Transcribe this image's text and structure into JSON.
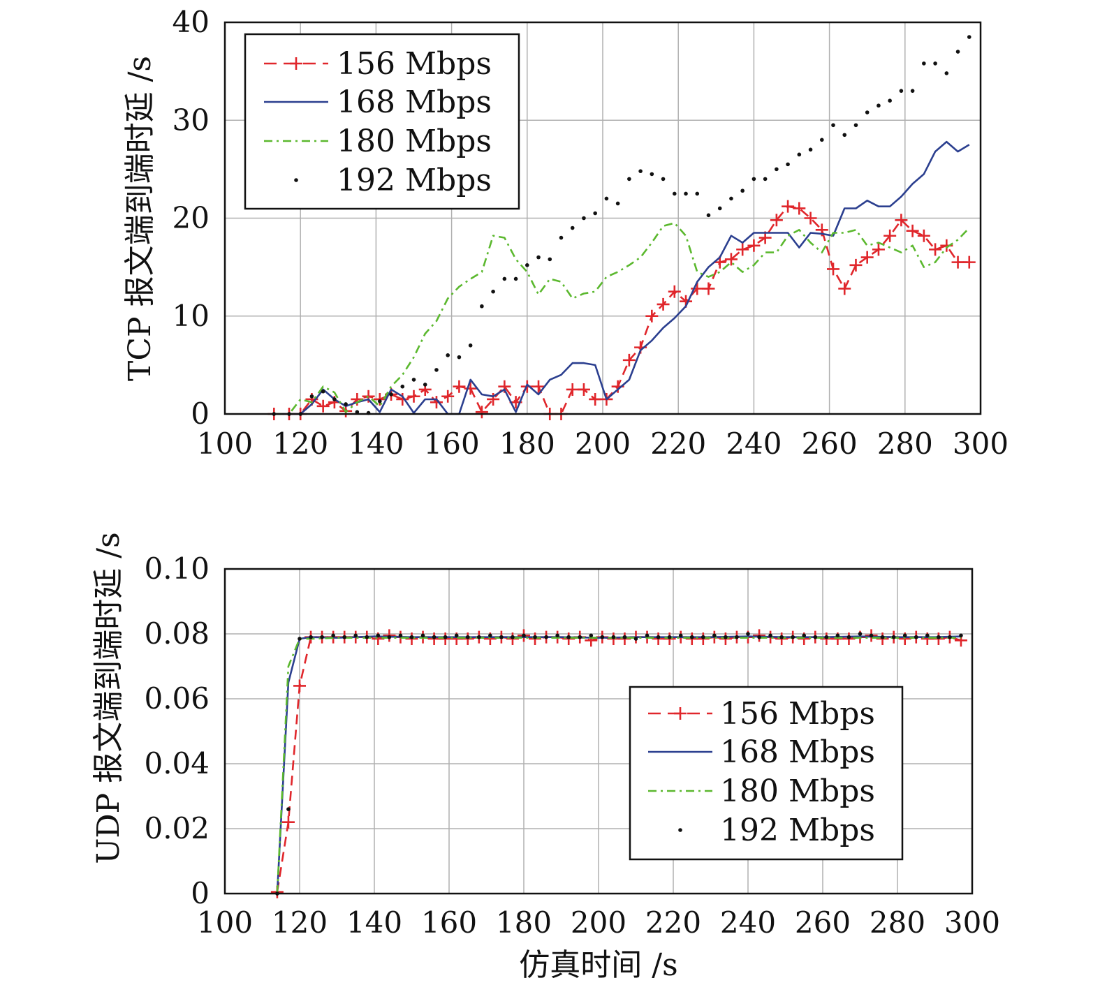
{
  "colors": {
    "s156": "#e0262b",
    "s168": "#2b3f8f",
    "s180": "#5bb82e",
    "s192": "#111111",
    "grid": "#b0b0b0"
  },
  "chart_data": [
    {
      "type": "line",
      "id": "tcp",
      "ylabel": "TCP 报文端到端时延 /s",
      "xlabel": "",
      "xlim": [
        100,
        300
      ],
      "ylim": [
        0,
        40
      ],
      "xticks": [
        "100",
        "120",
        "140",
        "160",
        "180",
        "200",
        "220",
        "240",
        "260",
        "280",
        "300"
      ],
      "yticks": [
        "0",
        "10",
        "20",
        "30",
        "40"
      ],
      "grid": true,
      "legend_position": "top-left",
      "series": [
        {
          "name": "156 Mbps",
          "style": "dash-plus",
          "color": "#e0262b",
          "x": [
            113,
            117,
            120,
            123,
            126,
            129,
            132,
            135,
            138,
            141,
            144,
            147,
            150,
            153,
            156,
            159,
            162,
            165,
            168,
            171,
            174,
            177,
            180,
            183,
            186,
            189,
            192,
            195,
            198,
            201,
            204,
            207,
            210,
            213,
            216,
            219,
            222,
            225,
            228,
            231,
            234,
            237,
            240,
            243,
            246,
            249,
            252,
            255,
            258,
            261,
            264,
            267,
            270,
            273,
            276,
            279,
            282,
            285,
            288,
            291,
            294,
            297
          ],
          "y": [
            0,
            0,
            0,
            1.5,
            0.8,
            1.2,
            0.3,
            1.5,
            1.8,
            1.5,
            2.0,
            1.5,
            1.8,
            2.5,
            1.2,
            1.8,
            2.8,
            2.6,
            0.2,
            1.5,
            2.8,
            1.2,
            2.8,
            2.8,
            0,
            0,
            2.5,
            2.5,
            1.5,
            1.5,
            2.8,
            5.5,
            6.8,
            10.0,
            11.2,
            12.5,
            11.5,
            12.8,
            12.8,
            15.5,
            15.8,
            16.8,
            17.2,
            18.0,
            19.8,
            21.2,
            21.0,
            20.0,
            18.8,
            14.8,
            12.8,
            15.2,
            16.0,
            16.8,
            18.2,
            19.8,
            18.7,
            18.2,
            16.8,
            17.2,
            15.5,
            15.5
          ]
        },
        {
          "name": "168 Mbps",
          "style": "solid",
          "color": "#2b3f8f",
          "x": [
            113,
            117,
            120,
            123,
            126,
            129,
            132,
            135,
            138,
            141,
            144,
            147,
            150,
            153,
            156,
            159,
            162,
            165,
            168,
            171,
            174,
            177,
            180,
            183,
            186,
            189,
            192,
            195,
            198,
            201,
            204,
            207,
            210,
            213,
            216,
            219,
            222,
            225,
            228,
            231,
            234,
            237,
            240,
            243,
            246,
            249,
            252,
            255,
            258,
            261,
            264,
            267,
            270,
            273,
            276,
            279,
            282,
            285,
            288,
            291,
            294,
            297
          ],
          "y": [
            0,
            0,
            0,
            1.0,
            2.5,
            1.5,
            0.8,
            1.2,
            1.5,
            0.2,
            2.5,
            1.8,
            0.1,
            1.5,
            1.5,
            0,
            0,
            3.5,
            2.0,
            1.8,
            2.5,
            0.2,
            3.0,
            2.0,
            3.5,
            4.0,
            5.2,
            5.2,
            5.0,
            1.5,
            2.5,
            3.5,
            6.5,
            7.5,
            8.8,
            9.8,
            11.0,
            13.5,
            15.0,
            16.0,
            18.2,
            17.5,
            18.5,
            18.5,
            18.5,
            18.5,
            17.0,
            18.5,
            18.4,
            18.2,
            21.0,
            21.0,
            21.8,
            21.2,
            21.2,
            22.2,
            23.5,
            24.5,
            26.8,
            27.8,
            26.8,
            27.5
          ]
        },
        {
          "name": "180 Mbps",
          "style": "dashdot",
          "color": "#5bb82e",
          "x": [
            113,
            117,
            120,
            123,
            126,
            129,
            132,
            135,
            138,
            141,
            144,
            147,
            150,
            153,
            156,
            159,
            162,
            165,
            168,
            171,
            174,
            177,
            180,
            183,
            186,
            189,
            192,
            195,
            198,
            201,
            204,
            207,
            210,
            213,
            216,
            219,
            222,
            225,
            228,
            231,
            234,
            237,
            240,
            243,
            246,
            249,
            252,
            255,
            258,
            261,
            264,
            267,
            270,
            273,
            276,
            279,
            282,
            285,
            288,
            291,
            294,
            297
          ],
          "y": [
            0,
            0,
            1.5,
            1.2,
            2.8,
            2.2,
            0.2,
            1.2,
            1.8,
            0.8,
            2.8,
            4.0,
            5.8,
            8.2,
            9.5,
            11.8,
            13.0,
            13.8,
            14.5,
            18.2,
            18.0,
            15.8,
            14.5,
            12.2,
            13.8,
            13.5,
            11.8,
            12.3,
            12.5,
            14.0,
            14.5,
            15.2,
            16.0,
            17.5,
            19.2,
            19.5,
            18.2,
            14.5,
            14.0,
            14.5,
            15.5,
            14.5,
            15.2,
            16.5,
            16.5,
            18.2,
            18.8,
            17.5,
            16.5,
            18.5,
            18.5,
            18.8,
            17.2,
            17.5,
            17.0,
            16.5,
            17.2,
            15.0,
            15.5,
            17.0,
            17.8,
            19.0
          ]
        },
        {
          "name": "192 Mbps",
          "style": "dots",
          "color": "#111111",
          "x": [
            113,
            117,
            120,
            123,
            126,
            129,
            132,
            135,
            138,
            141,
            144,
            147,
            150,
            153,
            156,
            159,
            162,
            165,
            168,
            171,
            174,
            177,
            180,
            183,
            186,
            189,
            192,
            195,
            198,
            201,
            204,
            207,
            210,
            213,
            216,
            219,
            222,
            225,
            228,
            231,
            234,
            237,
            240,
            243,
            246,
            249,
            252,
            255,
            258,
            261,
            264,
            267,
            270,
            273,
            276,
            279,
            282,
            285,
            288,
            291,
            294,
            297
          ],
          "y": [
            0,
            0,
            0,
            1.8,
            2.3,
            1.5,
            1.0,
            0.2,
            0.1,
            1.3,
            2.0,
            2.8,
            3.5,
            3.0,
            4.5,
            6.0,
            5.8,
            7.0,
            11.0,
            12.5,
            13.8,
            13.8,
            15.2,
            16.0,
            15.8,
            18.0,
            19.0,
            20.0,
            20.5,
            22.0,
            21.5,
            24.0,
            24.8,
            24.5,
            24.0,
            22.5,
            22.5,
            22.5,
            20.3,
            21.0,
            22.0,
            22.8,
            24.0,
            24.0,
            25.0,
            25.5,
            26.5,
            27.0,
            28.0,
            29.5,
            28.5,
            29.5,
            30.8,
            31.5,
            32.0,
            33.0,
            33.0,
            35.8,
            35.8,
            34.8,
            37.0,
            38.5
          ]
        }
      ],
      "legend": [
        "156 Mbps",
        "168 Mbps",
        "180 Mbps",
        "192 Mbps"
      ]
    },
    {
      "type": "line",
      "id": "udp",
      "ylabel": "UDP 报文端到端时延 /s",
      "xlabel": "仿真时间 /s",
      "xlim": [
        100,
        300
      ],
      "ylim": [
        0,
        0.1
      ],
      "xticks": [
        "100",
        "120",
        "140",
        "160",
        "180",
        "200",
        "220",
        "240",
        "260",
        "280",
        "300"
      ],
      "yticks": [
        "0",
        "0.02",
        "0.04",
        "0.06",
        "0.08",
        "0.10"
      ],
      "grid": true,
      "legend_position": "bottom-right",
      "series": [
        {
          "name": "156 Mbps",
          "style": "dash-plus",
          "color": "#e0262b",
          "x": [
            114,
            117,
            120,
            123,
            126,
            129,
            132,
            135,
            138,
            141,
            144,
            147,
            150,
            153,
            156,
            159,
            162,
            165,
            168,
            171,
            174,
            177,
            180,
            183,
            186,
            189,
            192,
            195,
            198,
            201,
            204,
            207,
            210,
            213,
            216,
            219,
            222,
            225,
            228,
            231,
            234,
            237,
            240,
            243,
            246,
            249,
            252,
            255,
            258,
            261,
            264,
            267,
            270,
            273,
            276,
            279,
            282,
            285,
            288,
            291,
            294,
            297
          ],
          "y": [
            0.0005,
            0.022,
            0.064,
            0.079,
            0.079,
            0.079,
            0.079,
            0.079,
            0.079,
            0.0785,
            0.0795,
            0.079,
            0.0785,
            0.079,
            0.0785,
            0.0785,
            0.0785,
            0.0785,
            0.079,
            0.0785,
            0.079,
            0.0785,
            0.0795,
            0.0785,
            0.079,
            0.079,
            0.0785,
            0.079,
            0.078,
            0.079,
            0.0785,
            0.0785,
            0.079,
            0.079,
            0.0785,
            0.0785,
            0.079,
            0.0785,
            0.0785,
            0.079,
            0.0785,
            0.079,
            0.079,
            0.0795,
            0.079,
            0.0785,
            0.079,
            0.0785,
            0.079,
            0.0785,
            0.0785,
            0.0785,
            0.079,
            0.0795,
            0.0785,
            0.079,
            0.0785,
            0.079,
            0.0785,
            0.0785,
            0.079,
            0.078
          ]
        },
        {
          "name": "168 Mbps",
          "style": "solid",
          "color": "#2b3f8f",
          "x": [
            114,
            117,
            120,
            123,
            130,
            140,
            150,
            160,
            170,
            180,
            190,
            200,
            210,
            220,
            230,
            240,
            250,
            260,
            270,
            280,
            290,
            297
          ],
          "y": [
            0,
            0.065,
            0.0785,
            0.079,
            0.0788,
            0.0792,
            0.079,
            0.079,
            0.079,
            0.079,
            0.079,
            0.0788,
            0.079,
            0.079,
            0.079,
            0.0792,
            0.079,
            0.079,
            0.0792,
            0.079,
            0.079,
            0.0792
          ]
        },
        {
          "name": "180 Mbps",
          "style": "dashdot",
          "color": "#5bb82e",
          "x": [
            114,
            117,
            120,
            123,
            130,
            140,
            150,
            160,
            170,
            180,
            190,
            200,
            210,
            220,
            230,
            240,
            250,
            260,
            270,
            280,
            290,
            297
          ],
          "y": [
            0,
            0.07,
            0.0785,
            0.0785,
            0.0788,
            0.0788,
            0.0788,
            0.0788,
            0.0788,
            0.0788,
            0.0788,
            0.0788,
            0.0788,
            0.0788,
            0.0788,
            0.0788,
            0.0788,
            0.0788,
            0.0788,
            0.0788,
            0.0788,
            0.0788
          ]
        },
        {
          "name": "192 Mbps",
          "style": "dots",
          "color": "#111111",
          "x": [
            114,
            117,
            120,
            123,
            126,
            129,
            132,
            135,
            138,
            141,
            144,
            147,
            150,
            153,
            156,
            159,
            162,
            165,
            168,
            171,
            174,
            177,
            180,
            183,
            186,
            189,
            192,
            195,
            198,
            201,
            204,
            207,
            210,
            213,
            216,
            219,
            222,
            225,
            228,
            231,
            234,
            237,
            240,
            243,
            246,
            249,
            252,
            255,
            258,
            261,
            264,
            267,
            270,
            273,
            276,
            279,
            282,
            285,
            288,
            291,
            294,
            297
          ],
          "y": [
            0,
            0.026,
            0.0785,
            0.079,
            0.079,
            0.0795,
            0.079,
            0.0795,
            0.079,
            0.0795,
            0.079,
            0.0795,
            0.079,
            0.0795,
            0.079,
            0.079,
            0.0795,
            0.079,
            0.079,
            0.0795,
            0.079,
            0.079,
            0.0795,
            0.079,
            0.079,
            0.0795,
            0.079,
            0.079,
            0.0795,
            0.079,
            0.079,
            0.079,
            0.0785,
            0.0795,
            0.079,
            0.079,
            0.0795,
            0.079,
            0.079,
            0.0795,
            0.079,
            0.079,
            0.08,
            0.079,
            0.0795,
            0.079,
            0.079,
            0.0795,
            0.079,
            0.079,
            0.0795,
            0.079,
            0.08,
            0.0795,
            0.079,
            0.079,
            0.0795,
            0.079,
            0.0795,
            0.079,
            0.079,
            0.0795
          ]
        }
      ],
      "legend": [
        "156 Mbps",
        "168 Mbps",
        "180 Mbps",
        "192 Mbps"
      ]
    }
  ]
}
